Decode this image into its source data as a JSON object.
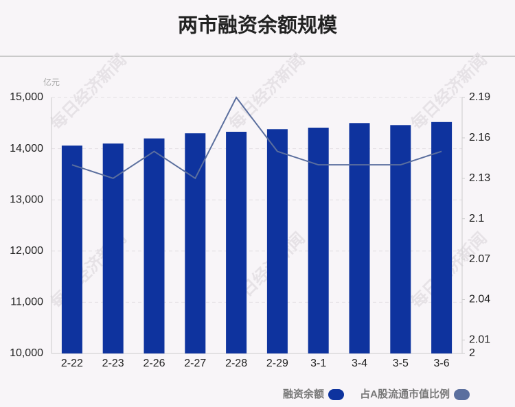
{
  "chart_data": {
    "type": "bar",
    "title": "两市融资余额规模",
    "y_unit": "亿元",
    "watermark": "每日经济新闻",
    "categories": [
      "2-22",
      "2-23",
      "2-26",
      "2-27",
      "2-28",
      "2-29",
      "3-1",
      "3-4",
      "3-5",
      "3-6"
    ],
    "series": [
      {
        "name": "融资余额",
        "type": "bar",
        "color": "#0e339e",
        "values": [
          14060,
          14100,
          14200,
          14300,
          14330,
          14380,
          14410,
          14500,
          14460,
          14520
        ]
      },
      {
        "name": "占A股流通市值比例",
        "type": "line",
        "axis": "y2",
        "color": "#5b6f9e",
        "values": [
          2.14,
          2.13,
          2.15,
          2.13,
          2.19,
          2.15,
          2.14,
          2.14,
          2.14,
          2.15
        ]
      }
    ],
    "ylim": [
      10000,
      15000
    ],
    "yticks": [
      {
        "value": 10000,
        "label": "10,000"
      },
      {
        "value": 11000,
        "label": "11,000"
      },
      {
        "value": 12000,
        "label": "12,000"
      },
      {
        "value": 13000,
        "label": "13,000"
      },
      {
        "value": 14000,
        "label": "14,000"
      },
      {
        "value": 15000,
        "label": "15,000"
      }
    ],
    "y2lim": [
      2,
      2.19
    ],
    "y2ticks": [
      2,
      2.01,
      2.04,
      2.07,
      2.1,
      2.13,
      2.16,
      2.19
    ],
    "grid": true
  }
}
